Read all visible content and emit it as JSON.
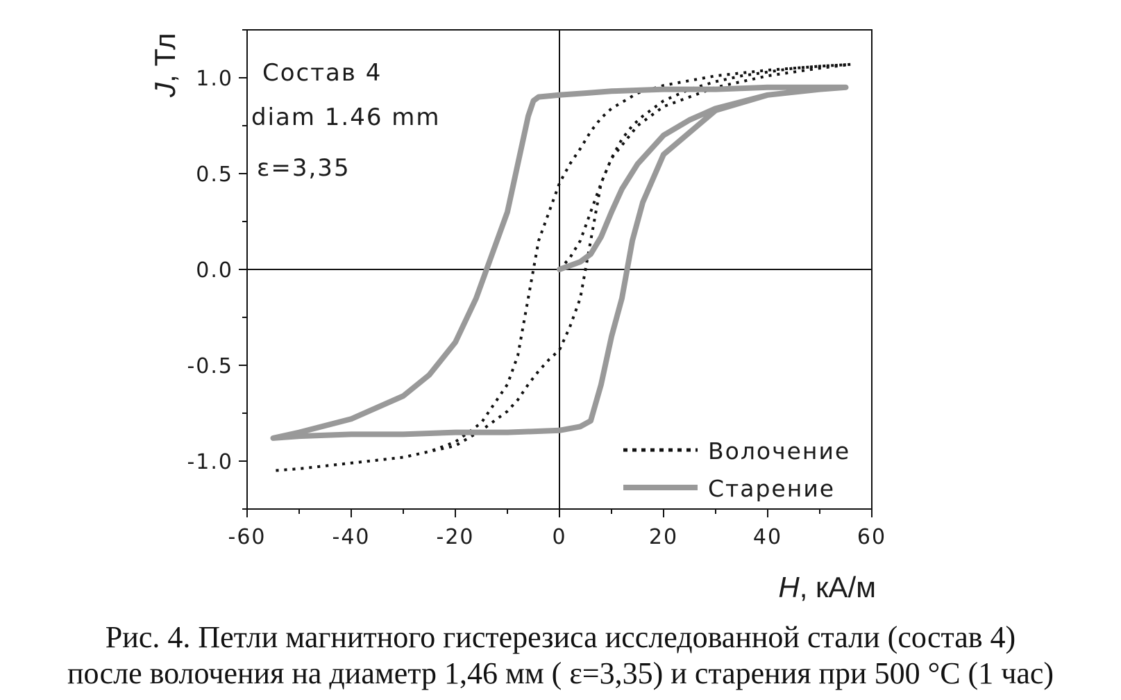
{
  "chart_data": {
    "type": "line",
    "title": "",
    "xlabel": "H, кА/м",
    "xlabel_var": "H",
    "xlabel_unit": ", кА/м",
    "ylabel": "J, Тл",
    "ylabel_var": "J",
    "ylabel_unit": ", Тл",
    "xlim": [
      -60,
      60
    ],
    "ylim": [
      -1.25,
      1.25
    ],
    "x_ticks": [
      -60,
      -40,
      -20,
      0,
      20,
      40,
      60
    ],
    "x_tick_labels": [
      "-60",
      "-40",
      "-20",
      "0",
      "20",
      "40",
      "60"
    ],
    "y_ticks": [
      -1.0,
      -0.5,
      0.0,
      0.5,
      1.0
    ],
    "y_tick_labels": [
      "-1.0",
      "-0.5",
      "0.0",
      "0.5",
      "1.0"
    ],
    "grid": false,
    "zero_lines": true,
    "legend_position": "bottom-right",
    "annotations": [
      "Состав 4",
      "diam 1.46 mm",
      "ε=3,35"
    ],
    "series": [
      {
        "name": "Волочение",
        "style": "dotted",
        "color": "#111111",
        "x": [
          0,
          2,
          4,
          6,
          8,
          10,
          12,
          14,
          16,
          18,
          20,
          25,
          30,
          35,
          40,
          45,
          50,
          56,
          50,
          40,
          30,
          20,
          15,
          10,
          8,
          6,
          4,
          2,
          0,
          -2,
          -4,
          -5,
          -6,
          -8,
          -10,
          -15,
          -20,
          -25,
          -30,
          -40,
          -50,
          -55,
          -50,
          -40,
          -30,
          -20,
          -15,
          -10,
          -8,
          -6,
          -4,
          -2,
          0,
          2,
          4,
          5,
          6,
          8,
          10,
          15,
          20,
          30,
          40,
          50,
          56
        ],
        "y": [
          0.0,
          0.06,
          0.15,
          0.3,
          0.45,
          0.58,
          0.68,
          0.75,
          0.8,
          0.84,
          0.88,
          0.94,
          0.98,
          1.01,
          1.03,
          1.05,
          1.06,
          1.07,
          1.06,
          1.04,
          1.01,
          0.96,
          0.92,
          0.84,
          0.79,
          0.72,
          0.63,
          0.55,
          0.45,
          0.3,
          0.15,
          0.0,
          -0.15,
          -0.45,
          -0.6,
          -0.8,
          -0.9,
          -0.95,
          -0.98,
          -1.01,
          -1.04,
          -1.05,
          -1.04,
          -1.01,
          -0.98,
          -0.92,
          -0.84,
          -0.74,
          -0.68,
          -0.6,
          -0.53,
          -0.47,
          -0.42,
          -0.3,
          -0.15,
          0.0,
          0.15,
          0.45,
          0.58,
          0.75,
          0.85,
          0.95,
          1.01,
          1.05,
          1.07
        ]
      },
      {
        "name": "Старение",
        "style": "solid",
        "color": "#999999",
        "x": [
          0,
          2,
          4,
          6,
          8,
          10,
          12,
          15,
          20,
          25,
          30,
          40,
          50,
          55,
          50,
          40,
          30,
          20,
          10,
          5,
          0,
          -4,
          -5,
          -6,
          -8,
          -10,
          -12,
          -14,
          -16,
          -20,
          -25,
          -30,
          -40,
          -50,
          -55,
          -50,
          -40,
          -30,
          -20,
          -10,
          0,
          4,
          6,
          8,
          10,
          12,
          13,
          14,
          16,
          20,
          30,
          40,
          50,
          55
        ],
        "y": [
          0.0,
          0.02,
          0.04,
          0.08,
          0.17,
          0.3,
          0.42,
          0.55,
          0.7,
          0.78,
          0.84,
          0.91,
          0.94,
          0.95,
          0.95,
          0.95,
          0.94,
          0.94,
          0.93,
          0.92,
          0.91,
          0.9,
          0.88,
          0.8,
          0.55,
          0.3,
          0.15,
          0.0,
          -0.15,
          -0.38,
          -0.55,
          -0.66,
          -0.78,
          -0.85,
          -0.88,
          -0.87,
          -0.86,
          -0.86,
          -0.85,
          -0.85,
          -0.84,
          -0.82,
          -0.79,
          -0.6,
          -0.35,
          -0.15,
          0.0,
          0.15,
          0.35,
          0.6,
          0.83,
          0.91,
          0.94,
          0.95
        ]
      }
    ]
  },
  "caption": {
    "line1": "Рис. 4. Петли магнитного гистерезиса исследованной стали (состав 4)",
    "line2": "после волочения на диаметр 1,46 мм ( ε=3,35) и старения при 500 °С (1 час)"
  }
}
